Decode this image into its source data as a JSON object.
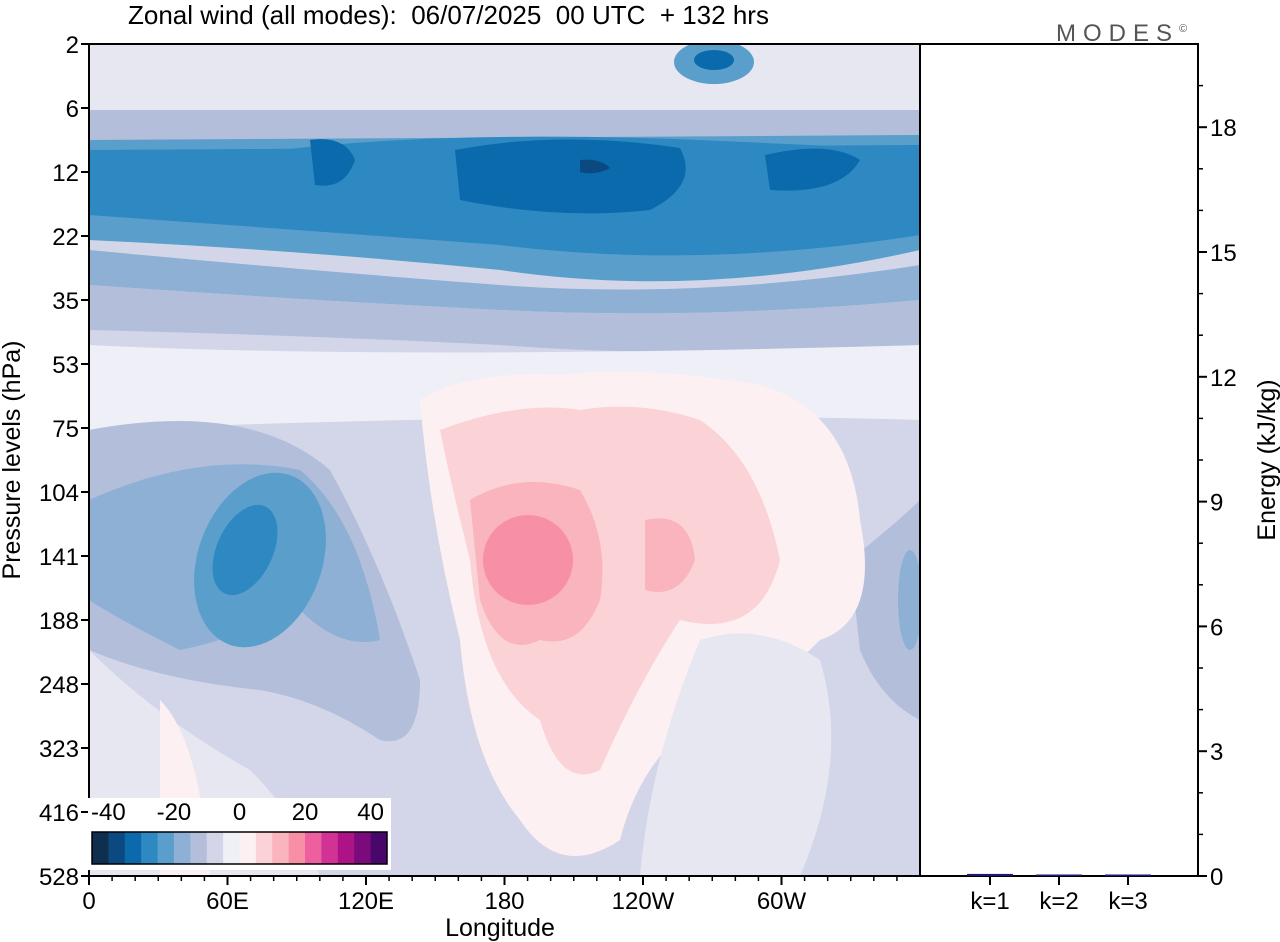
{
  "title": "Zonal wind (all modes):  06/07/2025  00 UTC  + 132 hrs",
  "logo": "MODES",
  "logo_mark": "©",
  "chart_data": [
    {
      "type": "heatmap",
      "xlabel": "Longitude",
      "ylabel": "Pressure levels (hPa)",
      "x_ticks": [
        "0",
        "60E",
        "120E",
        "180",
        "120W",
        "60W"
      ],
      "y_ticks": [
        "2",
        "6",
        "12",
        "22",
        "35",
        "53",
        "75",
        "104",
        "141",
        "188",
        "248",
        "323",
        "416",
        "528"
      ],
      "colorbar": {
        "labels": [
          "-40",
          "-20",
          "0",
          "20",
          "40"
        ],
        "range": [
          -45,
          45
        ],
        "colors": [
          "#0f2f4e",
          "#0b4a80",
          "#0a6aac",
          "#2e88c1",
          "#5a9fcb",
          "#8db0d4",
          "#b3bedb",
          "#d3d6e8",
          "#efeff7",
          "#fdf0f2",
          "#fbd3d6",
          "#f9b4bd",
          "#f78fa7",
          "#ee5fa0",
          "#d33295",
          "#ad1387",
          "#7b0a7b",
          "#4a076b"
        ]
      },
      "note_regions": [
        {
          "lon": [
            0,
            360
          ],
          "lev": [
            2,
            6
          ],
          "u": -8
        },
        {
          "lon": [
            0,
            360
          ],
          "lev": [
            8,
            30
          ],
          "u": -30
        },
        {
          "lon": [
            160,
            270
          ],
          "lev": [
            10,
            18
          ],
          "u": -38
        },
        {
          "lon": [
            50,
            80
          ],
          "lev": [
            100,
            180
          ],
          "u": -28
        },
        {
          "lon": [
            170,
            210
          ],
          "lev": [
            120,
            170
          ],
          "u": 20
        },
        {
          "lon": [
            220,
            250
          ],
          "lev": [
            120,
            160
          ],
          "u": 12
        }
      ]
    },
    {
      "type": "bar",
      "categories": [
        "k=1",
        "k=2",
        "k=3"
      ],
      "values": [
        0.05,
        0.02,
        0.01
      ],
      "ylabel": "Energy (kJ/kg)",
      "y_ticks": [
        "0",
        "3",
        "6",
        "9",
        "12",
        "15",
        "18"
      ],
      "ylim": [
        0,
        20
      ],
      "bar_color": "#1a1a6e"
    }
  ]
}
